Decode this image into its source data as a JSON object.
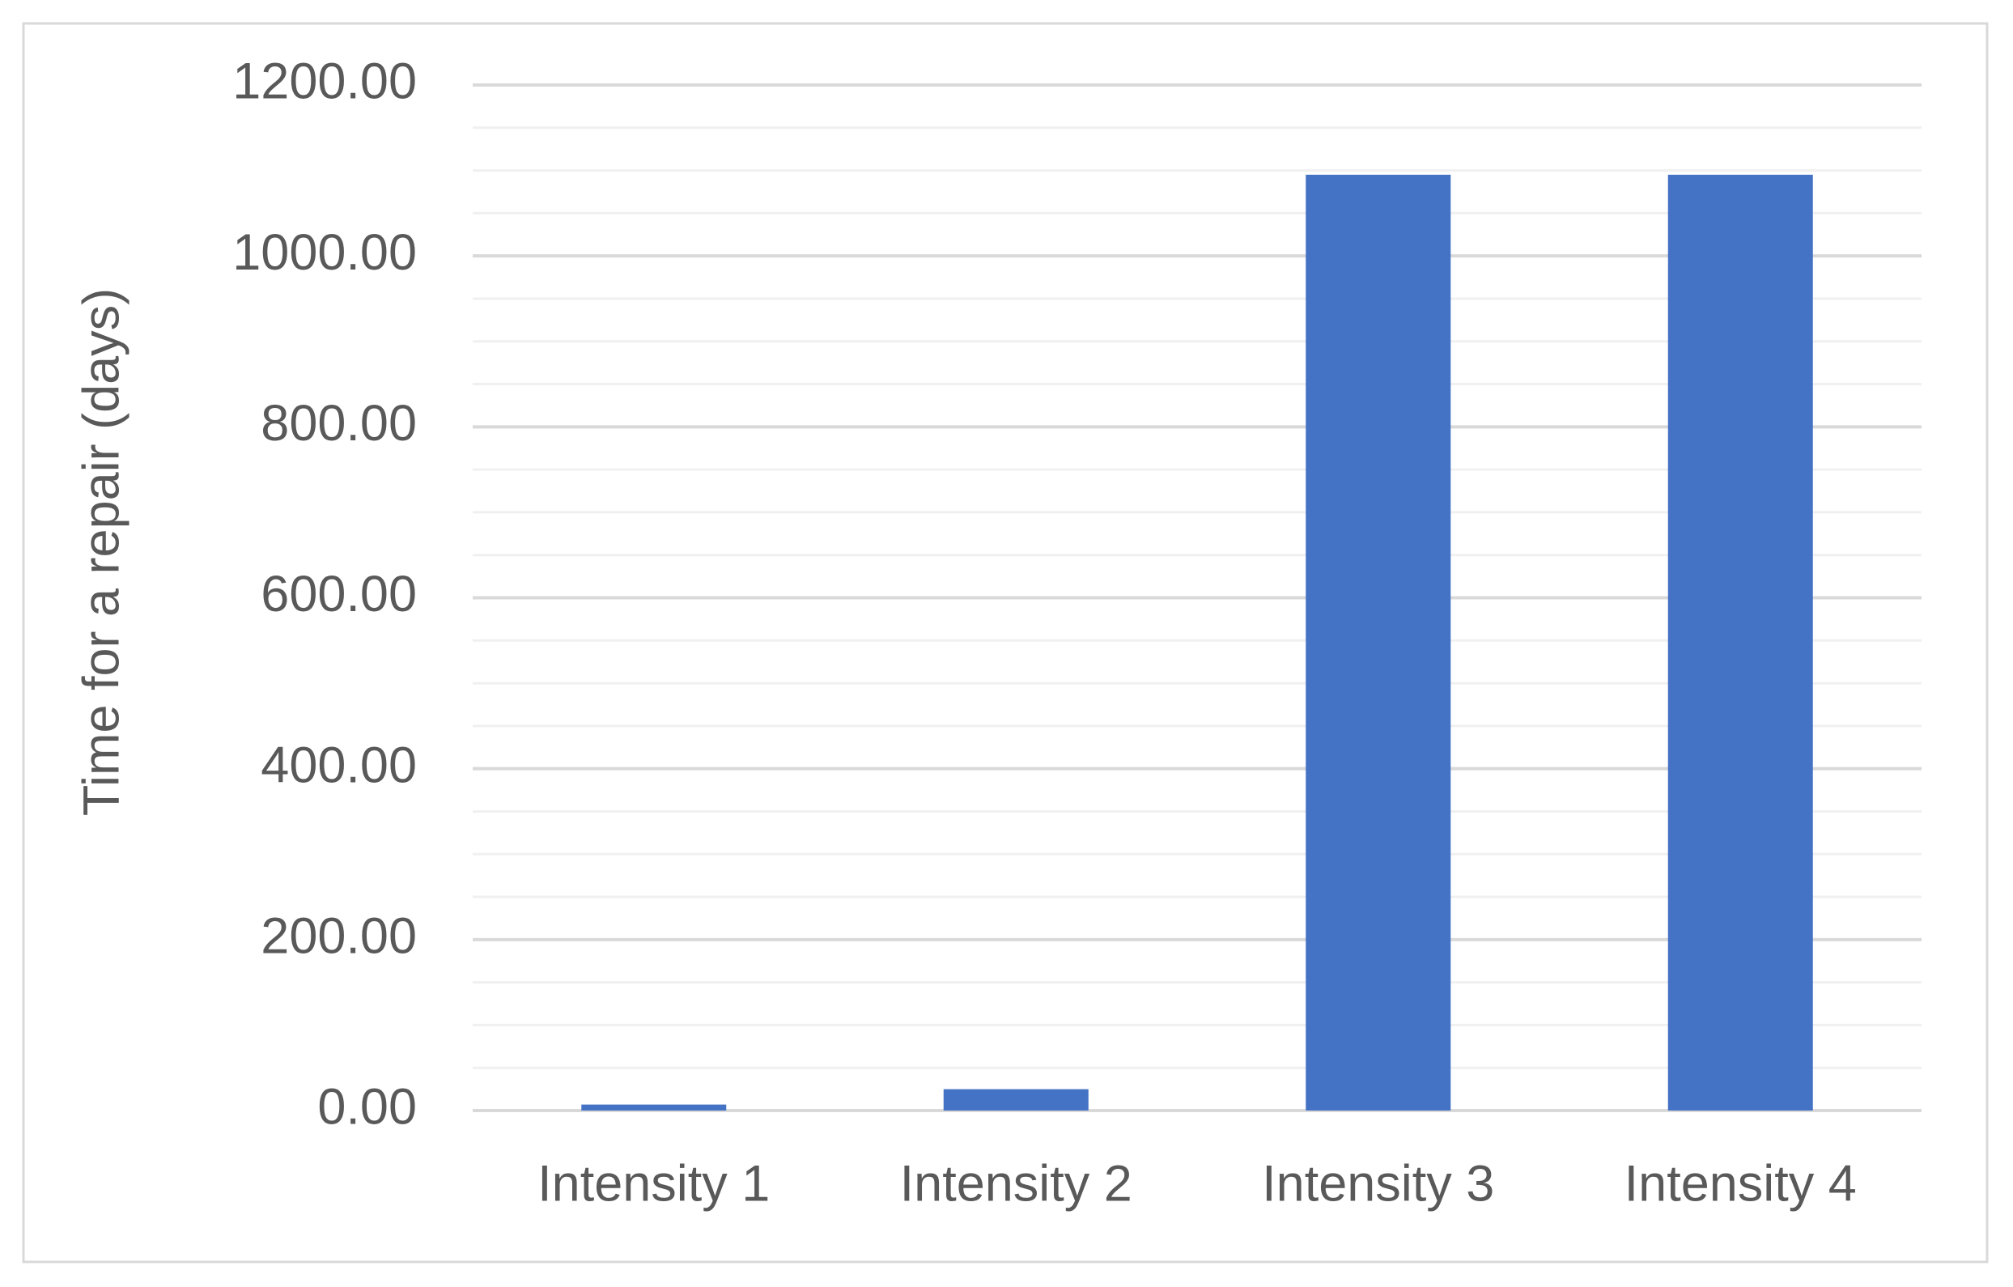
{
  "chart_data": {
    "type": "bar",
    "y_axis_label": "Time for a repair (days)",
    "categories": [
      "Intensity 1",
      "Intensity 2",
      "Intensity 3",
      "Intensity 4"
    ],
    "values": [
      7,
      25,
      1095,
      1095
    ],
    "color": "#4472c4",
    "ylim": [
      0,
      1200
    ],
    "yticks": [
      {
        "value": 0,
        "label": "0.00"
      },
      {
        "value": 200,
        "label": "200.00"
      },
      {
        "value": 400,
        "label": "400.00"
      },
      {
        "value": 600,
        "label": "600.00"
      },
      {
        "value": 800,
        "label": "800.00"
      },
      {
        "value": 1000,
        "label": "1000.00"
      },
      {
        "value": 1200,
        "label": "1200.00"
      }
    ],
    "minor_yticks": [
      50,
      100,
      150,
      250,
      300,
      350,
      450,
      500,
      550,
      650,
      700,
      750,
      850,
      900,
      950,
      1050,
      1100,
      1150
    ],
    "grid": true
  }
}
